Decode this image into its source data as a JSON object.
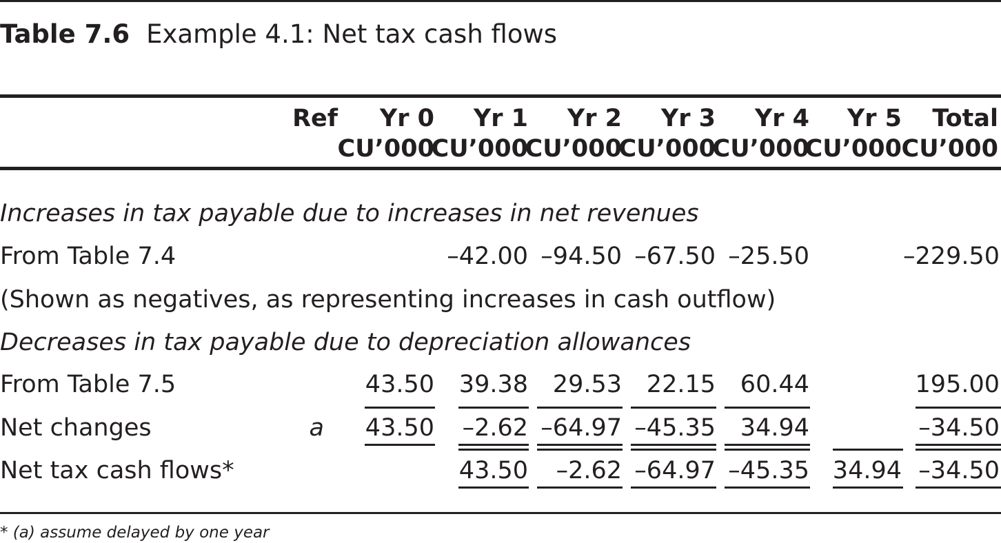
{
  "caption": {
    "number": "Table 7.6",
    "title": "Example 4.1: Net tax cash flows"
  },
  "headers": {
    "ref": "Ref",
    "cols": [
      {
        "line1": "Yr 0",
        "line2": "CU’000"
      },
      {
        "line1": "Yr 1",
        "line2": "CU’000"
      },
      {
        "line1": "Yr 2",
        "line2": "CU’000"
      },
      {
        "line1": "Yr 3",
        "line2": "CU’000"
      },
      {
        "line1": "Yr 4",
        "line2": "CU’000"
      },
      {
        "line1": "Yr 5",
        "line2": "CU’000"
      },
      {
        "line1": "Total",
        "line2": "CU’000"
      }
    ]
  },
  "rows": {
    "section1": "Increases in tax payable due to increases in net revenues",
    "table74": {
      "label": "From Table 7.4",
      "values": [
        "",
        "–42.00",
        "–94.50",
        "–67.50",
        "–25.50",
        "",
        "–229.50"
      ]
    },
    "note": "(Shown as negatives, as representing increases in cash outflow)",
    "section2": "Decreases in tax payable due to depreciation allowances",
    "table75": {
      "label": "From Table 7.5",
      "values": [
        "43.50",
        "39.38",
        "29.53",
        "22.15",
        "60.44",
        "",
        "195.00"
      ]
    },
    "net_changes": {
      "label": "Net changes",
      "ref": "a",
      "values": [
        "43.50",
        "–2.62",
        "–64.97",
        "–45.35",
        "34.94",
        "",
        "–34.50"
      ]
    },
    "net_tax": {
      "label": "Net tax cash flows*",
      "values": [
        "",
        "43.50",
        "–2.62",
        "–64.97",
        "–45.35",
        "34.94",
        "–34.50"
      ]
    }
  },
  "footnote": "* (a) assume delayed by one year"
}
